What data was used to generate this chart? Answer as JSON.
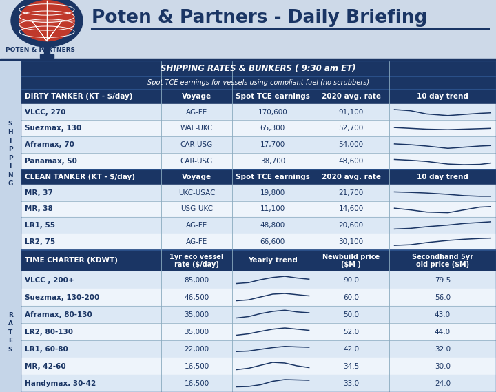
{
  "title": "SHIPPING RATES & BUNKERS ( 9:30 am ET)",
  "subtitle": "Spot TCE earnings for vessels using compliant fuel (no scrubbers)",
  "header_bg": "#1a3564",
  "row_bg_light": "#dce8f5",
  "row_bg_white": "#eef4fb",
  "outer_bg": "#c5d5e8",
  "dirty_section_label": "DIRTY TANKER (KT - $/day)",
  "clean_section_label": "CLEAN TANKER (KT - $/day)",
  "tc_section_label": "TIME CHARTER (KDWT)",
  "dirty_rows": [
    [
      "VLCC, 270",
      "AG-FE",
      "170,600",
      "91,100"
    ],
    [
      "Suezmax, 130",
      "WAF-UKC",
      "65,300",
      "52,700"
    ],
    [
      "Aframax, 70",
      "CAR-USG",
      "17,700",
      "54,000"
    ],
    [
      "Panamax, 50",
      "CAR-USG",
      "38,700",
      "48,600"
    ]
  ],
  "clean_rows": [
    [
      "MR, 37",
      "UKC-USAC",
      "19,800",
      "21,700"
    ],
    [
      "MR, 38",
      "USG-UKC",
      "11,100",
      "14,600"
    ],
    [
      "LR1, 55",
      "AG-FE",
      "48,800",
      "20,600"
    ],
    [
      "LR2, 75",
      "AG-FE",
      "66,600",
      "30,100"
    ]
  ],
  "tc_rows": [
    [
      "VLCC , 200+",
      "85,000",
      "90.0",
      "79.5"
    ],
    [
      "Suezmax, 130-200",
      "46,500",
      "60.0",
      "56.0"
    ],
    [
      "Aframax, 80-130",
      "35,000",
      "50.0",
      "43.0"
    ],
    [
      "LR2, 80-130",
      "35,000",
      "52.0",
      "44.0"
    ],
    [
      "LR1, 60-80",
      "22,000",
      "42.0",
      "32.0"
    ],
    [
      "MR, 42-60",
      "16,500",
      "34.5",
      "30.0"
    ],
    [
      "Handymax. 30-42",
      "16,500",
      "33.0",
      "24.0"
    ]
  ],
  "dirty_trends": [
    [
      [
        0.05,
        0.2,
        0.35,
        0.55,
        0.7,
        0.85,
        0.95
      ],
      [
        0.65,
        0.58,
        0.38,
        0.28,
        0.35,
        0.42,
        0.45
      ]
    ],
    [
      [
        0.05,
        0.2,
        0.35,
        0.55,
        0.7,
        0.85,
        0.95
      ],
      [
        0.55,
        0.5,
        0.45,
        0.42,
        0.45,
        0.48,
        0.5
      ]
    ],
    [
      [
        0.05,
        0.2,
        0.35,
        0.55,
        0.7,
        0.85,
        0.95
      ],
      [
        0.55,
        0.5,
        0.42,
        0.28,
        0.35,
        0.42,
        0.45
      ]
    ],
    [
      [
        0.05,
        0.2,
        0.35,
        0.55,
        0.7,
        0.85,
        0.95
      ],
      [
        0.6,
        0.55,
        0.48,
        0.32,
        0.28,
        0.3,
        0.38
      ]
    ]
  ],
  "clean_trends": [
    [
      [
        0.05,
        0.2,
        0.35,
        0.55,
        0.7,
        0.85,
        0.95
      ],
      [
        0.55,
        0.52,
        0.48,
        0.4,
        0.32,
        0.28,
        0.28
      ]
    ],
    [
      [
        0.05,
        0.2,
        0.35,
        0.55,
        0.7,
        0.85,
        0.95
      ],
      [
        0.55,
        0.45,
        0.32,
        0.28,
        0.45,
        0.62,
        0.65
      ]
    ],
    [
      [
        0.05,
        0.2,
        0.35,
        0.55,
        0.7,
        0.85,
        0.95
      ],
      [
        0.28,
        0.32,
        0.42,
        0.52,
        0.62,
        0.68,
        0.72
      ]
    ],
    [
      [
        0.05,
        0.2,
        0.35,
        0.55,
        0.7,
        0.85,
        0.95
      ],
      [
        0.28,
        0.32,
        0.45,
        0.58,
        0.65,
        0.7,
        0.72
      ]
    ]
  ],
  "tc_trends": [
    [
      [
        0.05,
        0.2,
        0.35,
        0.5,
        0.65,
        0.8,
        0.95
      ],
      [
        0.3,
        0.35,
        0.52,
        0.65,
        0.72,
        0.62,
        0.55
      ]
    ],
    [
      [
        0.05,
        0.2,
        0.35,
        0.5,
        0.65,
        0.8,
        0.95
      ],
      [
        0.3,
        0.35,
        0.52,
        0.68,
        0.72,
        0.65,
        0.58
      ]
    ],
    [
      [
        0.05,
        0.2,
        0.35,
        0.5,
        0.65,
        0.8,
        0.95
      ],
      [
        0.3,
        0.38,
        0.55,
        0.68,
        0.75,
        0.65,
        0.6
      ]
    ],
    [
      [
        0.05,
        0.2,
        0.35,
        0.5,
        0.65,
        0.8,
        0.95
      ],
      [
        0.3,
        0.38,
        0.52,
        0.65,
        0.72,
        0.65,
        0.58
      ]
    ],
    [
      [
        0.05,
        0.2,
        0.35,
        0.5,
        0.65,
        0.8,
        0.95
      ],
      [
        0.35,
        0.38,
        0.48,
        0.58,
        0.65,
        0.62,
        0.6
      ]
    ],
    [
      [
        0.05,
        0.2,
        0.35,
        0.5,
        0.65,
        0.8,
        0.95
      ],
      [
        0.3,
        0.38,
        0.55,
        0.72,
        0.68,
        0.52,
        0.42
      ]
    ],
    [
      [
        0.05,
        0.2,
        0.35,
        0.5,
        0.65,
        0.8,
        0.95
      ],
      [
        0.3,
        0.32,
        0.42,
        0.62,
        0.72,
        0.7,
        0.68
      ]
    ]
  ]
}
